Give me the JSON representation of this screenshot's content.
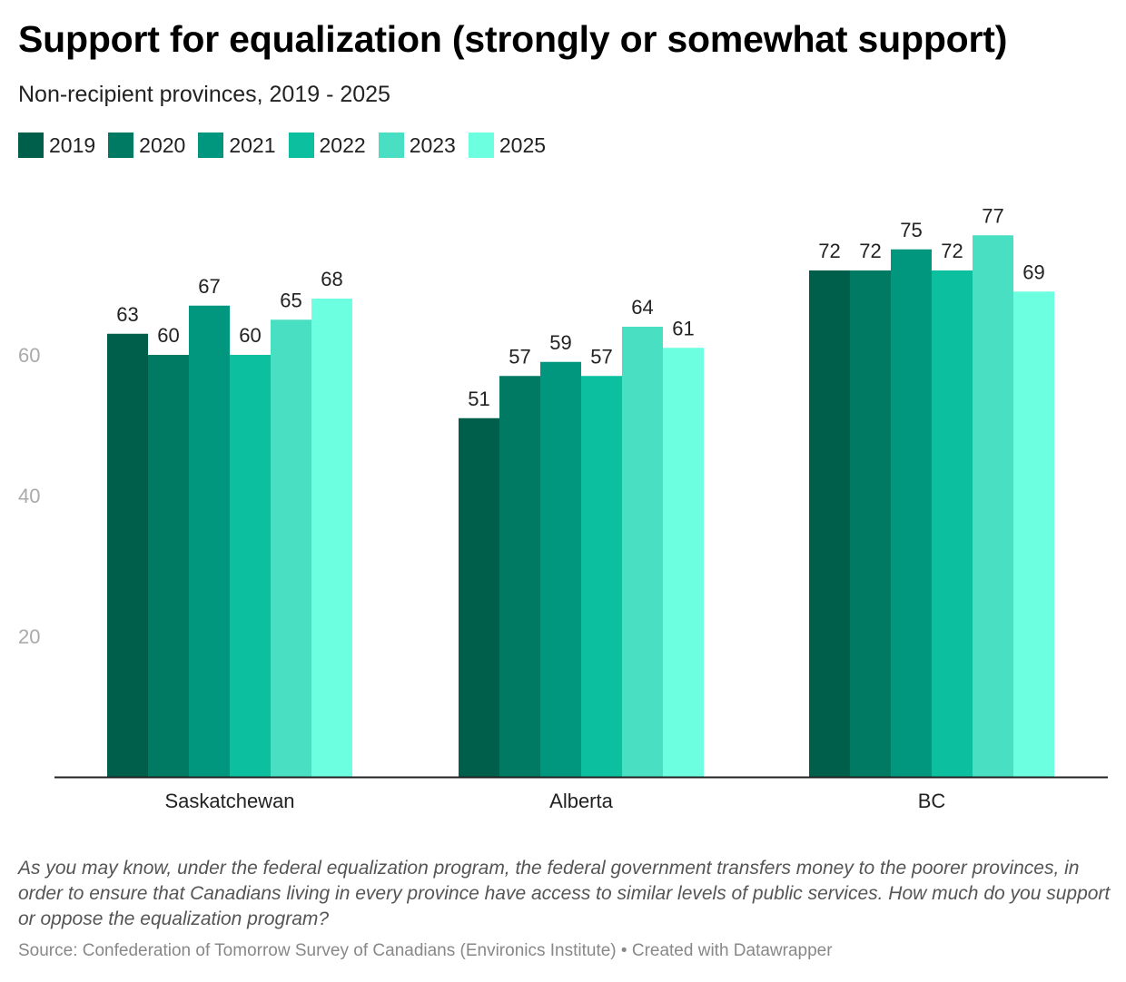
{
  "title": "Support for equalization (strongly or somewhat support)",
  "subtitle": "Non-recipient provinces, 2019 - 2025",
  "colors": [
    "#005f4a",
    "#007a62",
    "#00977e",
    "#0bbf9f",
    "#48dfc2",
    "#6cffe0"
  ],
  "chart_data": {
    "type": "bar",
    "title": "Support for equalization (strongly or somewhat support)",
    "subtitle": "Non-recipient provinces, 2019 - 2025",
    "categories": [
      "Saskatchewan",
      "Alberta",
      "BC"
    ],
    "series": [
      {
        "name": "2019",
        "values": [
          63,
          51,
          72
        ]
      },
      {
        "name": "2020",
        "values": [
          60,
          57,
          72
        ]
      },
      {
        "name": "2021",
        "values": [
          67,
          59,
          75
        ]
      },
      {
        "name": "2022",
        "values": [
          60,
          57,
          72
        ]
      },
      {
        "name": "2023",
        "values": [
          65,
          64,
          77
        ]
      },
      {
        "name": "2025",
        "values": [
          68,
          61,
          69
        ]
      }
    ],
    "yticks": [
      20,
      40,
      60
    ],
    "ylim": [
      0,
      80
    ],
    "xlabel": "",
    "ylabel": "",
    "legend": "top-left",
    "grid": false
  },
  "note": "As you may know, under the federal equalization program, the federal government transfers money to the poorer provinces, in order to ensure that Canadians living in every province have access to similar levels of public services. How much do you support or oppose the equalization program?",
  "source": "Source: Confederation of Tomorrow Survey of Canadians (Environics Institute) • Created with Datawrapper"
}
